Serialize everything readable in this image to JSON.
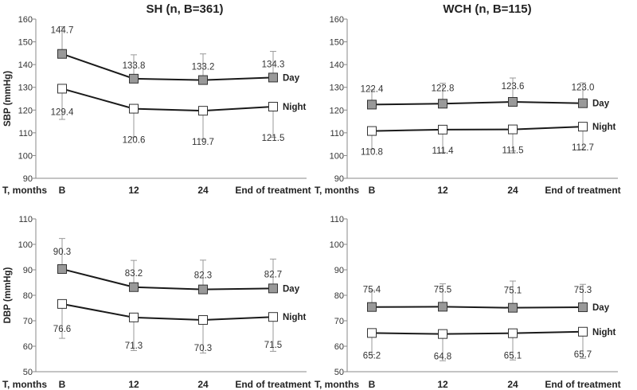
{
  "chart_data": [
    {
      "type": "line",
      "title": "SH (n, B=361)",
      "xlabel": "T, months",
      "ylabel": "SBP (mmHg)",
      "categories": [
        "B",
        "12",
        "24",
        "End of treatment"
      ],
      "ylim": [
        90,
        160
      ],
      "yticks": [
        90,
        100,
        110,
        120,
        130,
        140,
        150,
        160
      ],
      "series": [
        {
          "name": "Day",
          "marker": "filled-square",
          "values": [
            144.7,
            133.8,
            133.2,
            134.3
          ],
          "labels": [
            "144.7",
            "133.8",
            "133.2",
            "134.3"
          ],
          "error": [
            12,
            10.5,
            11.5,
            11.5
          ]
        },
        {
          "name": "Night",
          "marker": "open-square",
          "values": [
            129.4,
            120.6,
            119.7,
            121.5
          ],
          "labels": [
            "129.4",
            "120.6",
            "119.7",
            "121.5"
          ],
          "error": [
            13.5,
            12.5,
            12.5,
            13.5
          ]
        }
      ]
    },
    {
      "type": "line",
      "title": "WCH (n, B=115)",
      "xlabel": "T, months",
      "ylabel": "",
      "categories": [
        "B",
        "12",
        "24",
        "End of treatment"
      ],
      "ylim": [
        90,
        160
      ],
      "yticks": [
        90,
        100,
        110,
        120,
        130,
        140,
        150,
        160
      ],
      "series": [
        {
          "name": "Day",
          "marker": "filled-square",
          "values": [
            122.4,
            122.8,
            123.6,
            123.0
          ],
          "labels": [
            "122.4",
            "122.8",
            "123.6",
            "123.0"
          ],
          "error": [
            6.5,
            9,
            10.5,
            9
          ]
        },
        {
          "name": "Night",
          "marker": "open-square",
          "values": [
            110.8,
            111.4,
            111.5,
            112.7
          ],
          "labels": [
            "110.8",
            "111.4",
            "111.5",
            "112.7"
          ],
          "error": [
            8,
            10,
            9.5,
            10
          ]
        }
      ]
    },
    {
      "type": "line",
      "title": "",
      "xlabel": "T, months",
      "ylabel": "DBP (mmHg)",
      "categories": [
        "B",
        "12",
        "24",
        "End of treatment"
      ],
      "ylim": [
        50,
        110
      ],
      "yticks": [
        50,
        60,
        70,
        80,
        90,
        100,
        110
      ],
      "series": [
        {
          "name": "Day",
          "marker": "filled-square",
          "values": [
            90.3,
            83.2,
            82.3,
            82.7
          ],
          "labels": [
            "90.3",
            "83.2",
            "82.3",
            "82.7"
          ],
          "error": [
            12,
            10.5,
            11.5,
            11.5
          ]
        },
        {
          "name": "Night",
          "marker": "open-square",
          "values": [
            76.6,
            71.3,
            70.3,
            71.5
          ],
          "labels": [
            "76.6",
            "71.3",
            "70.3",
            "71.5"
          ],
          "error": [
            13.5,
            13,
            13,
            13.5
          ]
        }
      ]
    },
    {
      "type": "line",
      "title": "",
      "xlabel": "T, months",
      "ylabel": "",
      "categories": [
        "B",
        "12",
        "24",
        "End of treatment"
      ],
      "ylim": [
        50,
        110
      ],
      "yticks": [
        50,
        60,
        70,
        80,
        90,
        100,
        110
      ],
      "series": [
        {
          "name": "Day",
          "marker": "filled-square",
          "values": [
            75.4,
            75.5,
            75.1,
            75.3
          ],
          "labels": [
            "75.4",
            "75.5",
            "75.1",
            "75.3"
          ],
          "error": [
            6.5,
            9,
            10.5,
            9
          ]
        },
        {
          "name": "Night",
          "marker": "open-square",
          "values": [
            65.2,
            64.8,
            65.1,
            65.7
          ],
          "labels": [
            "65.2",
            "64.8",
            "65.1",
            "65.7"
          ],
          "error": [
            8.5,
            10.5,
            10.5,
            10.5
          ]
        }
      ]
    }
  ],
  "colors": {
    "line": "#1a1a1a",
    "axis": "#888888",
    "filled_marker": "#999999",
    "open_marker": "#ffffff",
    "error_bar": "#999999"
  }
}
